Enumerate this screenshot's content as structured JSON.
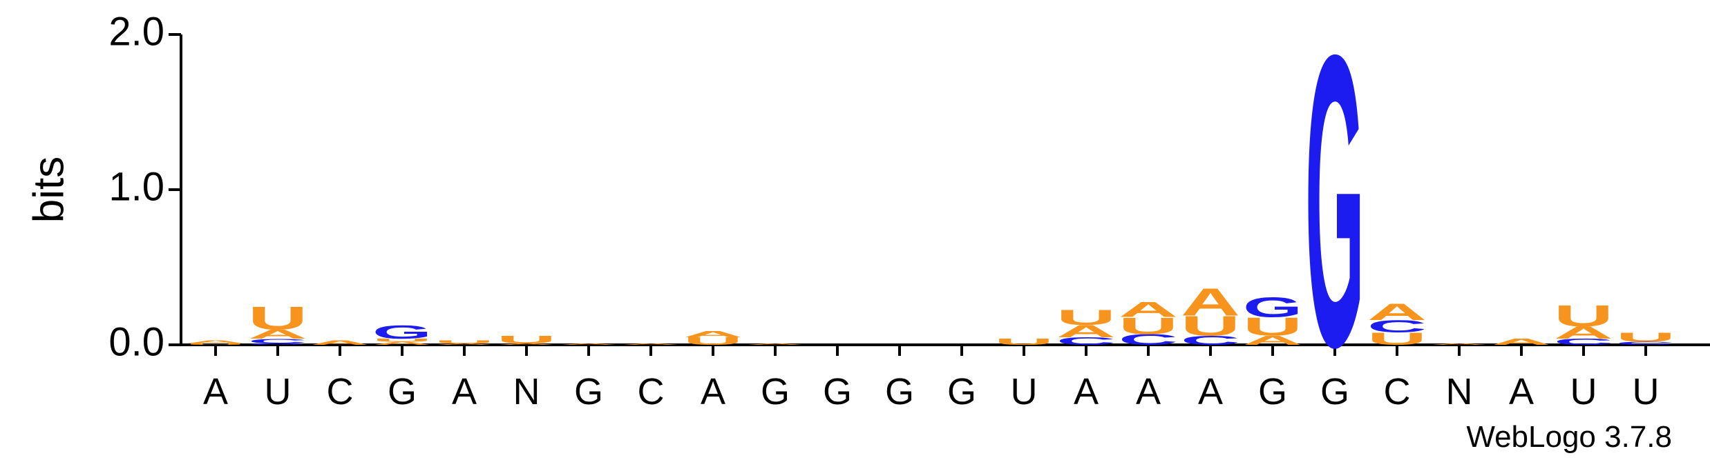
{
  "chart_data": {
    "type": "logo",
    "ylabel": "bits",
    "ylim": [
      0,
      2
    ],
    "yticks": [
      {
        "value": 0,
        "label": "0.0"
      },
      {
        "value": 1,
        "label": "1.0"
      },
      {
        "value": 2,
        "label": "2.0"
      }
    ],
    "categories": [
      "A",
      "U",
      "C",
      "G",
      "A",
      "N",
      "G",
      "C",
      "A",
      "G",
      "G",
      "G",
      "G",
      "U",
      "A",
      "A",
      "A",
      "G",
      "G",
      "C",
      "N",
      "A",
      "U",
      "U"
    ],
    "colors": {
      "A": "#f7941d",
      "U": "#f7941d",
      "C": "#1c1cf0",
      "G": "#1c1cf0"
    },
    "stacks": [
      [
        {
          "letter": "U",
          "value": 0.01
        },
        {
          "letter": "A",
          "value": 0.02
        }
      ],
      [
        {
          "letter": "G",
          "value": 0.01
        },
        {
          "letter": "C",
          "value": 0.03
        },
        {
          "letter": "A",
          "value": 0.06
        },
        {
          "letter": "U",
          "value": 0.15
        }
      ],
      [
        {
          "letter": "A",
          "value": 0.03
        }
      ],
      [
        {
          "letter": "A",
          "value": 0.02
        },
        {
          "letter": "U",
          "value": 0.02
        },
        {
          "letter": "G",
          "value": 0.09
        }
      ],
      [
        {
          "letter": "A",
          "value": 0.01
        },
        {
          "letter": "U",
          "value": 0.02
        }
      ],
      [
        {
          "letter": "A",
          "value": 0.01
        },
        {
          "letter": "U",
          "value": 0.05
        }
      ],
      [
        {
          "letter": "A",
          "value": 0.01
        }
      ],
      [
        {
          "letter": "A",
          "value": 0.01
        }
      ],
      [
        {
          "letter": "U",
          "value": 0.05
        },
        {
          "letter": "A",
          "value": 0.04
        }
      ],
      [
        {
          "letter": "A",
          "value": 0.01
        }
      ],
      [],
      [],
      [],
      [
        {
          "letter": "U",
          "value": 0.04
        }
      ],
      [
        {
          "letter": "C",
          "value": 0.05
        },
        {
          "letter": "A",
          "value": 0.08
        },
        {
          "letter": "U",
          "value": 0.1
        }
      ],
      [
        {
          "letter": "C",
          "value": 0.07
        },
        {
          "letter": "U",
          "value": 0.11
        },
        {
          "letter": "A",
          "value": 0.1
        }
      ],
      [
        {
          "letter": "C",
          "value": 0.06
        },
        {
          "letter": "U",
          "value": 0.13
        },
        {
          "letter": "A",
          "value": 0.18
        }
      ],
      [
        {
          "letter": "A",
          "value": 0.06
        },
        {
          "letter": "U",
          "value": 0.12
        },
        {
          "letter": "G",
          "value": 0.13
        }
      ],
      [
        {
          "letter": "G",
          "value": 1.93
        }
      ],
      [
        {
          "letter": "U",
          "value": 0.08
        },
        {
          "letter": "C",
          "value": 0.08
        },
        {
          "letter": "A",
          "value": 0.11
        }
      ],
      [
        {
          "letter": "A",
          "value": 0.01
        }
      ],
      [
        {
          "letter": "A",
          "value": 0.04
        }
      ],
      [
        {
          "letter": "C",
          "value": 0.04
        },
        {
          "letter": "A",
          "value": 0.08
        },
        {
          "letter": "U",
          "value": 0.14
        }
      ],
      [
        {
          "letter": "C",
          "value": 0.02
        },
        {
          "letter": "U",
          "value": 0.06
        }
      ]
    ],
    "footer": "WebLogo 3.7.8"
  }
}
